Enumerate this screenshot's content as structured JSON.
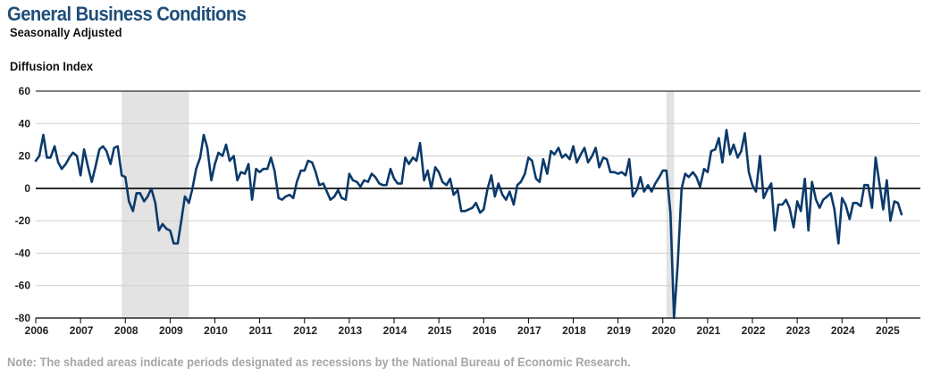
{
  "title": "General Business Conditions",
  "subtitle": "Seasonally Adjusted",
  "note": "Note: The shaded areas indicate periods designated as recessions by the National Bureau of Economic Research.",
  "colors": {
    "title": "#1f4e79",
    "line": "#0b3a6b",
    "recession": "#e3e3e3",
    "grid": "#cfcfcf",
    "zero": "#000000"
  },
  "chart_data": {
    "type": "line",
    "ylabel": "Diffusion Index",
    "xlabel": "",
    "ylim": [
      -80,
      60
    ],
    "xlim": [
      2006.0,
      2025.75
    ],
    "yticks": [
      60,
      40,
      20,
      0,
      -20,
      -40,
      -60,
      -80
    ],
    "xticks": [
      "2006",
      "2007",
      "2008",
      "2009",
      "2010",
      "2011",
      "2012",
      "2013",
      "2014",
      "2015",
      "2016",
      "2017",
      "2018",
      "2019",
      "2020",
      "2021",
      "2022",
      "2023",
      "2024",
      "2025"
    ],
    "grid": true,
    "recessions": [
      [
        2007.92,
        2009.42
      ],
      [
        2020.08,
        2020.25
      ]
    ],
    "series": [
      {
        "points": [
          [
            2006.0,
            17
          ],
          [
            2006.08,
            20
          ],
          [
            2006.17,
            33
          ],
          [
            2006.25,
            19
          ],
          [
            2006.33,
            19
          ],
          [
            2006.42,
            26
          ],
          [
            2006.5,
            16
          ],
          [
            2006.58,
            12
          ],
          [
            2006.67,
            15
          ],
          [
            2006.75,
            19
          ],
          [
            2006.83,
            22
          ],
          [
            2006.92,
            20
          ],
          [
            2007.0,
            8
          ],
          [
            2007.08,
            24
          ],
          [
            2007.17,
            13
          ],
          [
            2007.25,
            4
          ],
          [
            2007.33,
            13
          ],
          [
            2007.42,
            24
          ],
          [
            2007.5,
            26
          ],
          [
            2007.58,
            23
          ],
          [
            2007.67,
            15
          ],
          [
            2007.75,
            25
          ],
          [
            2007.83,
            26
          ],
          [
            2007.92,
            8
          ],
          [
            2008.0,
            7
          ],
          [
            2008.08,
            -8
          ],
          [
            2008.17,
            -14
          ],
          [
            2008.25,
            -3
          ],
          [
            2008.33,
            -3
          ],
          [
            2008.42,
            -8
          ],
          [
            2008.5,
            -5
          ],
          [
            2008.58,
            0
          ],
          [
            2008.67,
            -9
          ],
          [
            2008.75,
            -26
          ],
          [
            2008.83,
            -22
          ],
          [
            2008.92,
            -25
          ],
          [
            2009.0,
            -26
          ],
          [
            2009.08,
            -34
          ],
          [
            2009.17,
            -34
          ],
          [
            2009.25,
            -20
          ],
          [
            2009.33,
            -5
          ],
          [
            2009.42,
            -9
          ],
          [
            2009.5,
            0
          ],
          [
            2009.58,
            12
          ],
          [
            2009.67,
            19
          ],
          [
            2009.75,
            33
          ],
          [
            2009.83,
            25
          ],
          [
            2009.92,
            5
          ],
          [
            2010.0,
            15
          ],
          [
            2010.08,
            22
          ],
          [
            2010.17,
            20
          ],
          [
            2010.25,
            27
          ],
          [
            2010.33,
            17
          ],
          [
            2010.42,
            20
          ],
          [
            2010.5,
            5
          ],
          [
            2010.58,
            10
          ],
          [
            2010.67,
            9
          ],
          [
            2010.75,
            15
          ],
          [
            2010.83,
            -7
          ],
          [
            2010.92,
            12
          ],
          [
            2011.0,
            10
          ],
          [
            2011.08,
            12
          ],
          [
            2011.17,
            12
          ],
          [
            2011.25,
            19
          ],
          [
            2011.33,
            11
          ],
          [
            2011.42,
            -6
          ],
          [
            2011.5,
            -7
          ],
          [
            2011.58,
            -5
          ],
          [
            2011.67,
            -4
          ],
          [
            2011.75,
            -6
          ],
          [
            2011.83,
            4
          ],
          [
            2011.92,
            11
          ],
          [
            2012.0,
            11
          ],
          [
            2012.08,
            17
          ],
          [
            2012.17,
            16
          ],
          [
            2012.25,
            10
          ],
          [
            2012.33,
            2
          ],
          [
            2012.42,
            3
          ],
          [
            2012.5,
            -2
          ],
          [
            2012.58,
            -7
          ],
          [
            2012.67,
            -5
          ],
          [
            2012.75,
            -1
          ],
          [
            2012.83,
            -6
          ],
          [
            2012.92,
            -7
          ],
          [
            2013.0,
            9
          ],
          [
            2013.08,
            5
          ],
          [
            2013.17,
            4
          ],
          [
            2013.25,
            1
          ],
          [
            2013.33,
            5
          ],
          [
            2013.42,
            4
          ],
          [
            2013.5,
            9
          ],
          [
            2013.58,
            7
          ],
          [
            2013.67,
            3
          ],
          [
            2013.75,
            2
          ],
          [
            2013.83,
            2
          ],
          [
            2013.92,
            12
          ],
          [
            2014.0,
            6
          ],
          [
            2014.08,
            3
          ],
          [
            2014.17,
            3
          ],
          [
            2014.25,
            19
          ],
          [
            2014.33,
            15
          ],
          [
            2014.42,
            19
          ],
          [
            2014.5,
            17
          ],
          [
            2014.58,
            28
          ],
          [
            2014.67,
            5
          ],
          [
            2014.75,
            11
          ],
          [
            2014.83,
            0
          ],
          [
            2014.92,
            13
          ],
          [
            2015.0,
            10
          ],
          [
            2015.08,
            4
          ],
          [
            2015.17,
            2
          ],
          [
            2015.25,
            6
          ],
          [
            2015.33,
            -4
          ],
          [
            2015.42,
            -1
          ],
          [
            2015.5,
            -14
          ],
          [
            2015.58,
            -14
          ],
          [
            2015.67,
            -13
          ],
          [
            2015.75,
            -12
          ],
          [
            2015.83,
            -9
          ],
          [
            2015.92,
            -15
          ],
          [
            2016.0,
            -13
          ],
          [
            2016.08,
            -1
          ],
          [
            2016.17,
            8
          ],
          [
            2016.25,
            -5
          ],
          [
            2016.33,
            3
          ],
          [
            2016.42,
            -4
          ],
          [
            2016.5,
            -7
          ],
          [
            2016.58,
            -2
          ],
          [
            2016.67,
            -10
          ],
          [
            2016.75,
            2
          ],
          [
            2016.83,
            4
          ],
          [
            2016.92,
            9
          ],
          [
            2017.0,
            19
          ],
          [
            2017.08,
            17
          ],
          [
            2017.17,
            6
          ],
          [
            2017.25,
            4
          ],
          [
            2017.33,
            18
          ],
          [
            2017.42,
            9
          ],
          [
            2017.5,
            23
          ],
          [
            2017.58,
            21
          ],
          [
            2017.67,
            25
          ],
          [
            2017.75,
            19
          ],
          [
            2017.83,
            21
          ],
          [
            2017.92,
            18
          ],
          [
            2018.0,
            26
          ],
          [
            2018.08,
            16
          ],
          [
            2018.17,
            21
          ],
          [
            2018.25,
            25
          ],
          [
            2018.33,
            16
          ],
          [
            2018.42,
            20
          ],
          [
            2018.5,
            25
          ],
          [
            2018.58,
            13
          ],
          [
            2018.67,
            19
          ],
          [
            2018.75,
            18
          ],
          [
            2018.83,
            10
          ],
          [
            2018.92,
            10
          ],
          [
            2019.0,
            9
          ],
          [
            2019.08,
            10
          ],
          [
            2019.17,
            8
          ],
          [
            2019.25,
            18
          ],
          [
            2019.33,
            -5
          ],
          [
            2019.42,
            -1
          ],
          [
            2019.5,
            7
          ],
          [
            2019.58,
            -2
          ],
          [
            2019.67,
            2
          ],
          [
            2019.75,
            -2
          ],
          [
            2019.83,
            3
          ],
          [
            2019.92,
            7
          ],
          [
            2020.0,
            11
          ],
          [
            2020.08,
            11
          ],
          [
            2020.17,
            -15
          ],
          [
            2020.25,
            -80
          ],
          [
            2020.33,
            -48
          ],
          [
            2020.42,
            0
          ],
          [
            2020.5,
            9
          ],
          [
            2020.58,
            7
          ],
          [
            2020.67,
            10
          ],
          [
            2020.75,
            7
          ],
          [
            2020.83,
            1
          ],
          [
            2020.92,
            12
          ],
          [
            2021.0,
            10
          ],
          [
            2021.08,
            23
          ],
          [
            2021.17,
            24
          ],
          [
            2021.25,
            31
          ],
          [
            2021.33,
            16
          ],
          [
            2021.42,
            36
          ],
          [
            2021.5,
            21
          ],
          [
            2021.58,
            27
          ],
          [
            2021.67,
            19
          ],
          [
            2021.75,
            23
          ],
          [
            2021.83,
            34
          ],
          [
            2021.92,
            10
          ],
          [
            2022.0,
            2
          ],
          [
            2022.08,
            -2
          ],
          [
            2022.17,
            20
          ],
          [
            2022.25,
            -6
          ],
          [
            2022.33,
            -1
          ],
          [
            2022.42,
            3
          ],
          [
            2022.5,
            -26
          ],
          [
            2022.58,
            -10
          ],
          [
            2022.67,
            -10
          ],
          [
            2022.75,
            -7
          ],
          [
            2022.83,
            -12
          ],
          [
            2022.92,
            -24
          ],
          [
            2023.0,
            -8
          ],
          [
            2023.08,
            -14
          ],
          [
            2023.17,
            6
          ],
          [
            2023.25,
            -26
          ],
          [
            2023.33,
            4
          ],
          [
            2023.42,
            -7
          ],
          [
            2023.5,
            -12
          ],
          [
            2023.58,
            -7
          ],
          [
            2023.67,
            -5
          ],
          [
            2023.75,
            -3
          ],
          [
            2023.83,
            -13
          ],
          [
            2023.92,
            -34
          ],
          [
            2024.0,
            -6
          ],
          [
            2024.08,
            -10
          ],
          [
            2024.17,
            -19
          ],
          [
            2024.25,
            -9
          ],
          [
            2024.33,
            -9
          ],
          [
            2024.42,
            -11
          ],
          [
            2024.5,
            2
          ],
          [
            2024.58,
            2
          ],
          [
            2024.67,
            -12
          ],
          [
            2024.75,
            19
          ],
          [
            2024.83,
            4
          ],
          [
            2024.92,
            -13
          ],
          [
            2025.0,
            5
          ],
          [
            2025.08,
            -20
          ],
          [
            2025.17,
            -8
          ],
          [
            2025.25,
            -9
          ],
          [
            2025.33,
            -16
          ]
        ]
      }
    ]
  }
}
